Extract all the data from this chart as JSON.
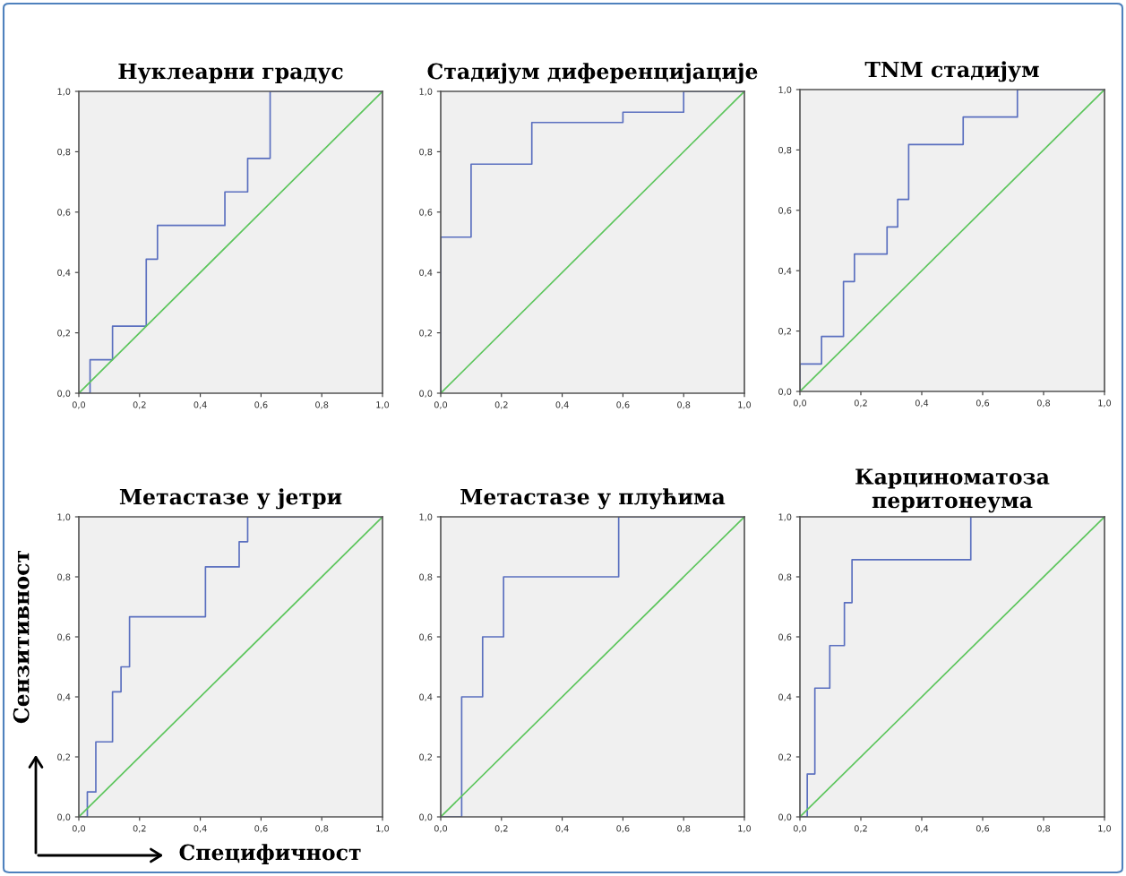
{
  "chart_data": [
    {
      "type": "step",
      "title": "Нуклеарни градус",
      "xlim": [
        0,
        1
      ],
      "ylim": [
        0,
        1
      ],
      "xticks": [
        {
          "value": 0,
          "label": "0,0"
        },
        {
          "value": 0.2,
          "label": "0,2"
        },
        {
          "value": 0.4,
          "label": "0,4"
        },
        {
          "value": 0.6,
          "label": "0,6"
        },
        {
          "value": 0.8,
          "label": "0,8"
        },
        {
          "value": 1,
          "label": "1,0"
        }
      ],
      "yticks": [
        {
          "value": 0,
          "label": "0,0"
        },
        {
          "value": 0.2,
          "label": "0,2"
        },
        {
          "value": 0.4,
          "label": "0,4"
        },
        {
          "value": 0.6,
          "label": "0,6"
        },
        {
          "value": 0.8,
          "label": "0,8"
        },
        {
          "value": 1,
          "label": "1,0"
        }
      ],
      "series": [
        {
          "color": "#5a6fbf",
          "x": [
            0,
            0.037,
            0.111,
            0.222,
            0.259,
            0.481,
            0.556,
            0.63,
            1
          ],
          "values": [
            0,
            0.111,
            0.222,
            0.444,
            0.556,
            0.667,
            0.778,
            1.0,
            1.0
          ]
        },
        {
          "type": "line",
          "color": "#5cc55c",
          "x": [
            0,
            1
          ],
          "values": [
            0,
            1
          ]
        }
      ]
    },
    {
      "type": "step",
      "title": "Стадијум диференцијације",
      "xlim": [
        0,
        1
      ],
      "ylim": [
        0,
        1
      ],
      "xticks": [
        {
          "value": 0,
          "label": "0,0"
        },
        {
          "value": 0.2,
          "label": "0,2"
        },
        {
          "value": 0.4,
          "label": "0,4"
        },
        {
          "value": 0.6,
          "label": "0,6"
        },
        {
          "value": 0.8,
          "label": "0,8"
        },
        {
          "value": 1,
          "label": "1,0"
        }
      ],
      "yticks": [
        {
          "value": 0,
          "label": "0,0"
        },
        {
          "value": 0.2,
          "label": "0,2"
        },
        {
          "value": 0.4,
          "label": "0,4"
        },
        {
          "value": 0.6,
          "label": "0,6"
        },
        {
          "value": 0.8,
          "label": "0,8"
        },
        {
          "value": 1,
          "label": "1,0"
        }
      ],
      "series": [
        {
          "color": "#5a6fbf",
          "x": [
            0,
            0,
            0.1,
            0.3,
            0.6,
            0.8,
            1
          ],
          "values": [
            0,
            0.517,
            0.759,
            0.897,
            0.931,
            1.0,
            1.0
          ]
        },
        {
          "type": "line",
          "color": "#5cc55c",
          "x": [
            0,
            1
          ],
          "values": [
            0,
            1
          ]
        }
      ]
    },
    {
      "type": "step",
      "title": "TNM стадијум",
      "xlim": [
        0,
        1
      ],
      "ylim": [
        0,
        1
      ],
      "xticks": [
        {
          "value": 0,
          "label": "0,0"
        },
        {
          "value": 0.2,
          "label": "0,2"
        },
        {
          "value": 0.4,
          "label": "0,4"
        },
        {
          "value": 0.6,
          "label": "0,6"
        },
        {
          "value": 0.8,
          "label": "0,8"
        },
        {
          "value": 1,
          "label": "1,0"
        }
      ],
      "yticks": [
        {
          "value": 0,
          "label": "0,0"
        },
        {
          "value": 0.2,
          "label": "0,2"
        },
        {
          "value": 0.4,
          "label": "0,4"
        },
        {
          "value": 0.6,
          "label": "0,6"
        },
        {
          "value": 0.8,
          "label": "0,8"
        },
        {
          "value": 1,
          "label": "1,0"
        }
      ],
      "series": [
        {
          "color": "#5a6fbf",
          "x": [
            0,
            0,
            0.071,
            0.143,
            0.179,
            0.286,
            0.321,
            0.357,
            0.536,
            0.714,
            1
          ],
          "values": [
            0,
            0.091,
            0.182,
            0.364,
            0.455,
            0.545,
            0.636,
            0.818,
            0.909,
            1.0,
            1.0
          ]
        },
        {
          "type": "line",
          "color": "#5cc55c",
          "x": [
            0,
            1
          ],
          "values": [
            0,
            1
          ]
        }
      ]
    },
    {
      "type": "step",
      "title": "Метастазе у јетри",
      "xlabel": "Специфичност",
      "ylabel": "Сензитивност",
      "xlim": [
        0,
        1
      ],
      "ylim": [
        0,
        1
      ],
      "xticks": [
        {
          "value": 0,
          "label": "0,0"
        },
        {
          "value": 0.2,
          "label": "0,2"
        },
        {
          "value": 0.4,
          "label": "0,4"
        },
        {
          "value": 0.6,
          "label": "0,6"
        },
        {
          "value": 0.8,
          "label": "0,8"
        },
        {
          "value": 1,
          "label": "1,0"
        }
      ],
      "yticks": [
        {
          "value": 0,
          "label": "0,0"
        },
        {
          "value": 0.2,
          "label": "0,2"
        },
        {
          "value": 0.4,
          "label": "0,4"
        },
        {
          "value": 0.6,
          "label": "0,6"
        },
        {
          "value": 0.8,
          "label": "0,8"
        },
        {
          "value": 1,
          "label": "1,0"
        }
      ],
      "series": [
        {
          "color": "#5a6fbf",
          "x": [
            0,
            0.028,
            0.056,
            0.111,
            0.139,
            0.167,
            0.417,
            0.528,
            0.556,
            1
          ],
          "values": [
            0,
            0.083,
            0.25,
            0.417,
            0.5,
            0.667,
            0.833,
            0.917,
            1.0,
            1.0
          ]
        },
        {
          "type": "line",
          "color": "#5cc55c",
          "x": [
            0,
            1
          ],
          "values": [
            0,
            1
          ]
        }
      ]
    },
    {
      "type": "step",
      "title": "Метастазе у плућима",
      "xlim": [
        0,
        1
      ],
      "ylim": [
        0,
        1
      ],
      "xticks": [
        {
          "value": 0,
          "label": "0,0"
        },
        {
          "value": 0.2,
          "label": "0,2"
        },
        {
          "value": 0.4,
          "label": "0,4"
        },
        {
          "value": 0.6,
          "label": "0,6"
        },
        {
          "value": 0.8,
          "label": "0,8"
        },
        {
          "value": 1,
          "label": "1,0"
        }
      ],
      "yticks": [
        {
          "value": 0,
          "label": "0,0"
        },
        {
          "value": 0.2,
          "label": "0,2"
        },
        {
          "value": 0.4,
          "label": "0,4"
        },
        {
          "value": 0.6,
          "label": "0,6"
        },
        {
          "value": 0.8,
          "label": "0,8"
        },
        {
          "value": 1,
          "label": "1,0"
        }
      ],
      "series": [
        {
          "color": "#5a6fbf",
          "x": [
            0,
            0.069,
            0.138,
            0.207,
            0.586,
            1
          ],
          "values": [
            0,
            0.4,
            0.6,
            0.8,
            1.0,
            1.0
          ]
        },
        {
          "type": "line",
          "color": "#5cc55c",
          "x": [
            0,
            1
          ],
          "values": [
            0,
            1
          ]
        }
      ]
    },
    {
      "type": "step",
      "title": "Карциноматоза перитонеума",
      "xlim": [
        0,
        1
      ],
      "ylim": [
        0,
        1
      ],
      "xticks": [
        {
          "value": 0,
          "label": "0,0"
        },
        {
          "value": 0.2,
          "label": "0,2"
        },
        {
          "value": 0.4,
          "label": "0,4"
        },
        {
          "value": 0.6,
          "label": "0,6"
        },
        {
          "value": 0.8,
          "label": "0,8"
        },
        {
          "value": 1,
          "label": "1,0"
        }
      ],
      "yticks": [
        {
          "value": 0,
          "label": "0,0"
        },
        {
          "value": 0.2,
          "label": "0,2"
        },
        {
          "value": 0.4,
          "label": "0,4"
        },
        {
          "value": 0.6,
          "label": "0,6"
        },
        {
          "value": 0.8,
          "label": "0,8"
        },
        {
          "value": 1,
          "label": "1,0"
        }
      ],
      "series": [
        {
          "color": "#5a6fbf",
          "x": [
            0,
            0.024,
            0.049,
            0.098,
            0.146,
            0.171,
            0.561,
            1
          ],
          "values": [
            0,
            0.143,
            0.429,
            0.571,
            0.714,
            0.857,
            1.0,
            1.0
          ]
        },
        {
          "type": "line",
          "color": "#5cc55c",
          "x": [
            0,
            1
          ],
          "values": [
            0,
            1
          ]
        }
      ]
    }
  ]
}
